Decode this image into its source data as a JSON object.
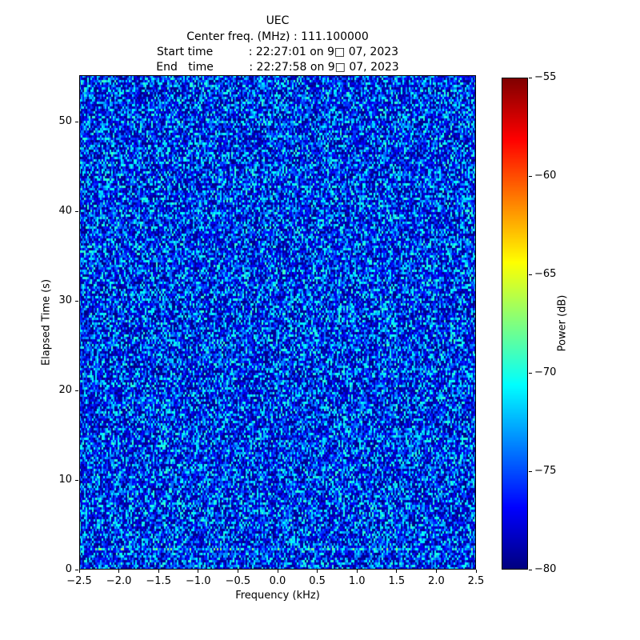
{
  "header": {
    "title": "UEC",
    "center_freq_line": "Center freq. (MHz) : 111.100000",
    "start_time_line": "Start time          : 22:27:01 on 9□ 07, 2023",
    "end_time_line": "End   time          : 22:27:58 on 9□ 07, 2023"
  },
  "chart_data": {
    "type": "heatmap",
    "title": "UEC",
    "center_frequency_mhz": "111.100000",
    "start_time": "22:27:01 on 9□ 07, 2023",
    "end_time": "22:27:58 on 9□ 07, 2023",
    "xlabel": "Frequency (kHz)",
    "ylabel": "Elapsed Time (s)",
    "xlim": [
      -2.5,
      2.5
    ],
    "ylim": [
      0,
      55.2
    ],
    "xticks": [
      {
        "value": -2.5,
        "label": "−2.5"
      },
      {
        "value": -2.0,
        "label": "−2.0"
      },
      {
        "value": -1.5,
        "label": "−1.5"
      },
      {
        "value": -1.0,
        "label": "−1.0"
      },
      {
        "value": -0.5,
        "label": "−0.5"
      },
      {
        "value": 0.0,
        "label": "0.0"
      },
      {
        "value": 0.5,
        "label": "0.5"
      },
      {
        "value": 1.0,
        "label": "1.0"
      },
      {
        "value": 1.5,
        "label": "1.5"
      },
      {
        "value": 2.0,
        "label": "2.0"
      },
      {
        "value": 2.5,
        "label": "2.5"
      }
    ],
    "yticks": [
      {
        "value": 0,
        "label": "0"
      },
      {
        "value": 10,
        "label": "10"
      },
      {
        "value": 20,
        "label": "20"
      },
      {
        "value": 30,
        "label": "30"
      },
      {
        "value": 40,
        "label": "40"
      },
      {
        "value": 50,
        "label": "50"
      }
    ],
    "colorbar": {
      "label": "Power (dB)",
      "min": -80,
      "max": -55,
      "colormap": "jet",
      "ticks": [
        {
          "value": -55,
          "label": "−55"
        },
        {
          "value": -60,
          "label": "−60"
        },
        {
          "value": -65,
          "label": "−65"
        },
        {
          "value": -70,
          "label": "−70"
        },
        {
          "value": -75,
          "label": "−75"
        },
        {
          "value": -80,
          "label": "−80"
        }
      ]
    },
    "data_description": "Spectrogram of a wideband noise floor: random power values of approximately −80 to −69 dB (dark blue with cyan speckles on the jet colormap), with a slightly brighter horizontal streak near t ≈ 2.4 s.",
    "noise": {
      "floor_db": -80,
      "span_db": 11,
      "skew": 1.6,
      "seed": 42,
      "bins_x": 248,
      "bins_y": 206,
      "bright_rows_s": [
        2.4
      ],
      "bright_boost_db": 2.5
    }
  }
}
